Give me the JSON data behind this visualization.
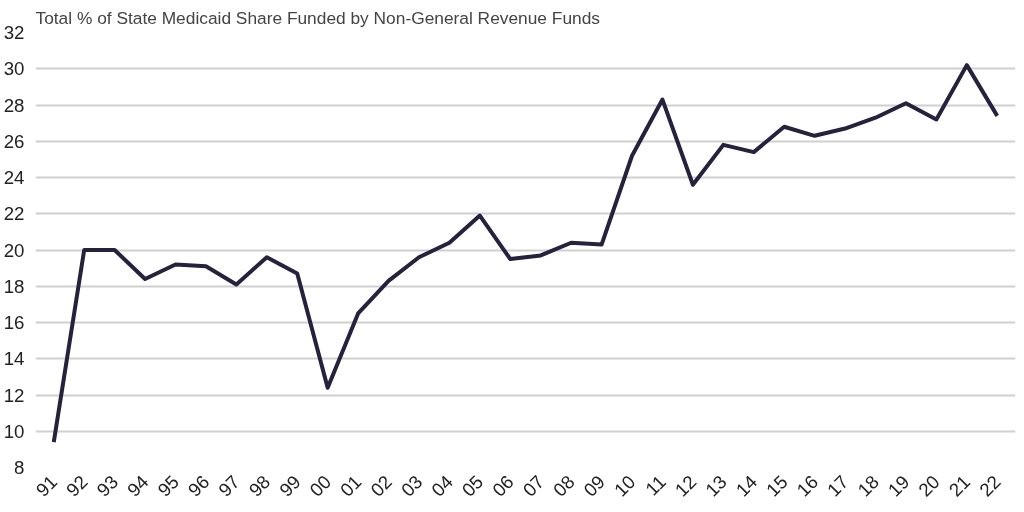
{
  "chart_data": {
    "type": "line",
    "title": "Total % of State Medicaid Share Funded by Non-General Revenue Funds",
    "categories": [
      "91",
      "92",
      "93",
      "94",
      "95",
      "96",
      "97",
      "98",
      "99",
      "00",
      "01",
      "02",
      "03",
      "04",
      "05",
      "06",
      "07",
      "08",
      "09",
      "10",
      "11",
      "12",
      "13",
      "14",
      "15",
      "16",
      "17",
      "18",
      "19",
      "20",
      "21",
      "22"
    ],
    "series": [
      {
        "color": "#26223d",
        "values": [
          9.4,
          20.0,
          20.0,
          18.4,
          19.2,
          19.1,
          18.1,
          19.6,
          18.7,
          12.4,
          16.5,
          18.3,
          19.6,
          20.4,
          21.9,
          19.5,
          19.7,
          20.4,
          20.3,
          25.2,
          28.3,
          23.6,
          25.8,
          25.4,
          26.8,
          26.3,
          26.7,
          27.3,
          28.1,
          27.2,
          30.2,
          27.4
        ]
      }
    ],
    "ylim": [
      8,
      32
    ],
    "yticks": [
      8,
      10,
      12,
      14,
      16,
      18,
      20,
      22,
      24,
      26,
      28,
      30,
      32
    ],
    "grid": "y",
    "marker": "none",
    "line_style": "solid"
  }
}
